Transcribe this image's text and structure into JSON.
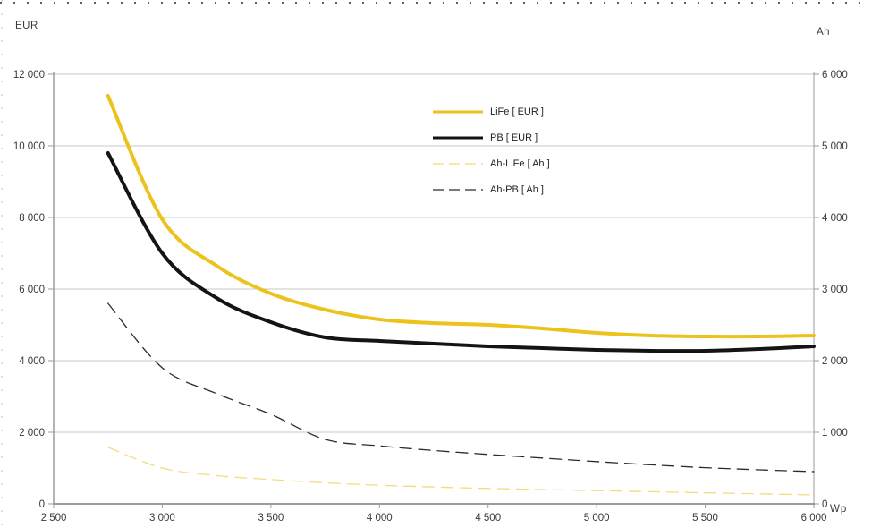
{
  "page": {
    "left_axis_title": "EUR",
    "right_axis_title": "Ah",
    "x_axis_title": "Wp"
  },
  "chart_data": {
    "type": "line",
    "title": "",
    "grid": true,
    "legend_position": "upper-center",
    "x_axis": {
      "label": "Wp",
      "min": 2500,
      "max": 6000,
      "tick_step": 500,
      "tick_labels": [
        "2 500",
        "3 000",
        "3 500",
        "4 000",
        "4 500",
        "5 000",
        "5 500",
        "6 000"
      ]
    },
    "left_axis": {
      "title": "EUR",
      "min": 0,
      "max": 12000,
      "tick_step": 2000,
      "tick_labels": [
        "0",
        "2 000",
        "4 000",
        "6 000",
        "8 000",
        "10 000",
        "12 000"
      ]
    },
    "right_axis": {
      "title": "Ah",
      "min": 0,
      "max": 6000,
      "tick_step": 1000,
      "tick_labels": [
        "0",
        "1 000",
        "2 000",
        "3 000",
        "4 000",
        "5 000",
        "6 000"
      ]
    },
    "x": [
      2750,
      3000,
      3250,
      3500,
      3750,
      4000,
      4250,
      4500,
      4750,
      5000,
      5250,
      5500,
      5750,
      6000
    ],
    "series": [
      {
        "name": "LiFe [ EUR ]",
        "axis": "left",
        "color": "#ecc21c",
        "width": 4,
        "dash": null,
        "values": [
          11400,
          7950,
          6650,
          5875,
          5425,
          5150,
          5050,
          5000,
          4900,
          4775,
          4700,
          4675,
          4675,
          4700
        ]
      },
      {
        "name": "PB [ EUR ]",
        "axis": "left",
        "color": "#141414",
        "width": 4,
        "dash": null,
        "values": [
          9800,
          7000,
          5750,
          5075,
          4650,
          4550,
          4475,
          4400,
          4350,
          4300,
          4275,
          4275,
          4325,
          4400
        ]
      },
      {
        "name": "Ah-LiFe [ Ah ]",
        "axis": "right",
        "color": "#f2dc7e",
        "width": 1.3,
        "dash": "13 8",
        "values": [
          790,
          500,
          395,
          340,
          295,
          260,
          235,
          215,
          200,
          185,
          170,
          155,
          140,
          125
        ]
      },
      {
        "name": "Ah-PB [ Ah ]",
        "axis": "right",
        "color": "#2b2b2b",
        "width": 1.3,
        "dash": "13 8",
        "values": [
          2800,
          1900,
          1540,
          1250,
          900,
          810,
          745,
          690,
          640,
          590,
          545,
          505,
          475,
          450
        ]
      }
    ]
  },
  "colors": {
    "grid": "#c9c9c9",
    "axis": "#9b9b9b",
    "text": "#3a3a3a"
  }
}
